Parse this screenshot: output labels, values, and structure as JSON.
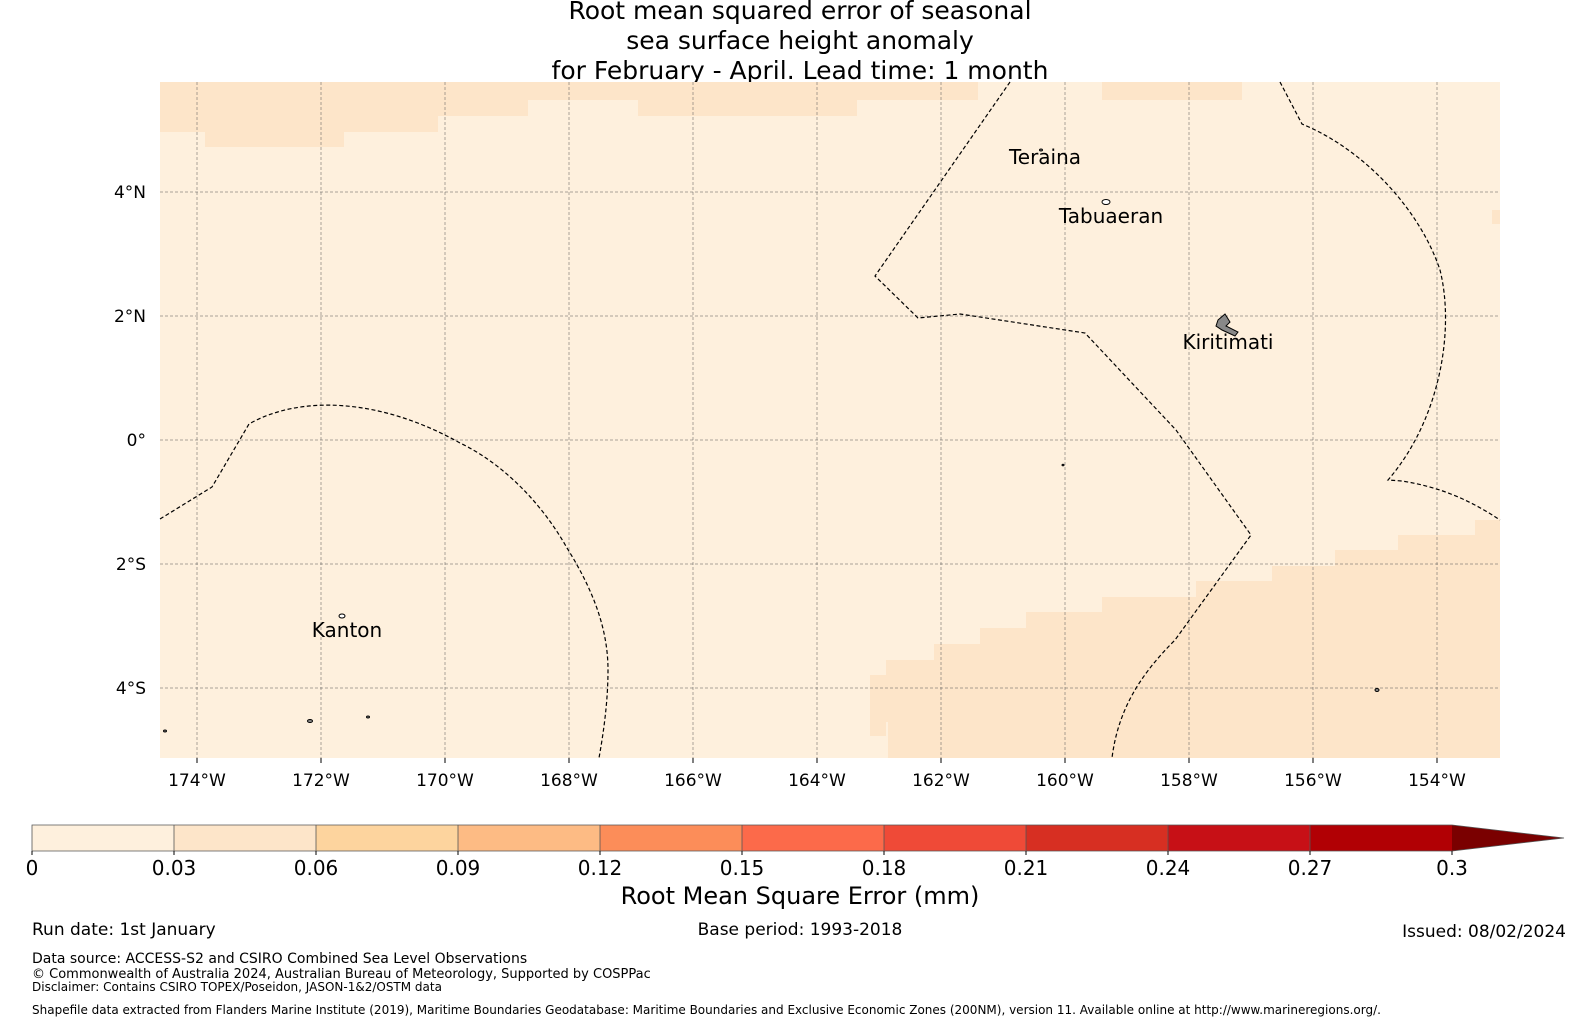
{
  "title": {
    "line1": "Root mean squared error of seasonal",
    "line2": "sea surface height anomaly",
    "line3": "for February - April. Lead time: 1 month"
  },
  "map": {
    "lon_labels": [
      "174°W",
      "172°W",
      "170°W",
      "168°W",
      "166°W",
      "164°W",
      "162°W",
      "160°W",
      "158°W",
      "156°W",
      "154°W"
    ],
    "lat_labels": [
      "4°N",
      "2°N",
      "0°",
      "2°S",
      "4°S"
    ],
    "places": [
      "Teraina",
      "Tabuaeran",
      "Kiritimati",
      "Kanton"
    ],
    "colors": {
      "background": "#fef0dd",
      "band2": "#fde5c9",
      "boundary": "#000000"
    }
  },
  "colorbar": {
    "ticks": [
      "0",
      "0.03",
      "0.06",
      "0.09",
      "0.12",
      "0.15",
      "0.18",
      "0.21",
      "0.24",
      "0.27",
      "0.3"
    ],
    "colors": [
      "#fef0dd",
      "#fde5c9",
      "#fdd49e",
      "#fdbb84",
      "#fc8d59",
      "#fc6a4a",
      "#ef4a37",
      "#d72f22",
      "#c71016",
      "#b10004",
      "#7a0000"
    ],
    "label": "Root Mean Square Error (mm)"
  },
  "footer": {
    "run_date": "Run date: 1st January",
    "base_period": "Base period: 1993-2018",
    "issued": "Issued: 08/02/2024",
    "data_source": "Data source: ACCESS-S2 and CSIRO Combined Sea Level Observations",
    "copyright": "© Commonwealth of Australia 2024, Australian Bureau of Meteorology, Supported by COSPPac",
    "disclaimer": "Disclaimer: Contains CSIRO TOPEX/Poseidon, JASON-1&2/OSTM data",
    "shapefile": "Shapefile data extracted from Flanders Marine Institute (2019), Maritime Boundaries Geodatabase: Maritime Boundaries and Exclusive Economic Zones (200NM), version 11. Available online at http://www.marineregions.org/."
  }
}
